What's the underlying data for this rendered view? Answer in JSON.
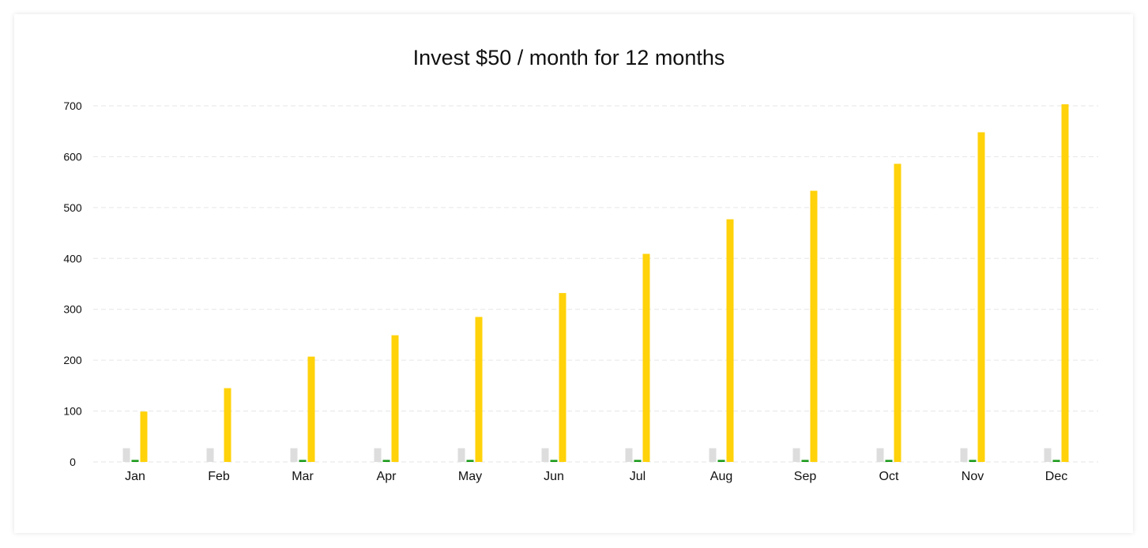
{
  "chart_data": {
    "type": "bar",
    "title": "Invest $50 / month for 12 months",
    "xlabel": "",
    "ylabel": "",
    "ylim": [
      0,
      700
    ],
    "yticks": [
      0,
      100,
      200,
      300,
      400,
      500,
      600,
      700
    ],
    "categories": [
      "Jan",
      "Feb",
      "Mar",
      "Apr",
      "May",
      "Jun",
      "Jul",
      "Aug",
      "Sep",
      "Oct",
      "Nov",
      "Dec"
    ],
    "grid": true,
    "series": [
      {
        "color": "#dddddd",
        "values": [
          27,
          27,
          27,
          27,
          27,
          27,
          27,
          27,
          27,
          27,
          27,
          27
        ]
      },
      {
        "color": "#1a9a1a",
        "values": [
          4,
          0,
          4,
          4,
          4,
          4,
          4,
          4,
          4,
          4,
          4,
          4
        ]
      },
      {
        "color": "#ffd20a",
        "values": [
          99,
          145,
          207,
          249,
          285,
          332,
          409,
          477,
          533,
          586,
          648,
          703
        ]
      }
    ]
  }
}
